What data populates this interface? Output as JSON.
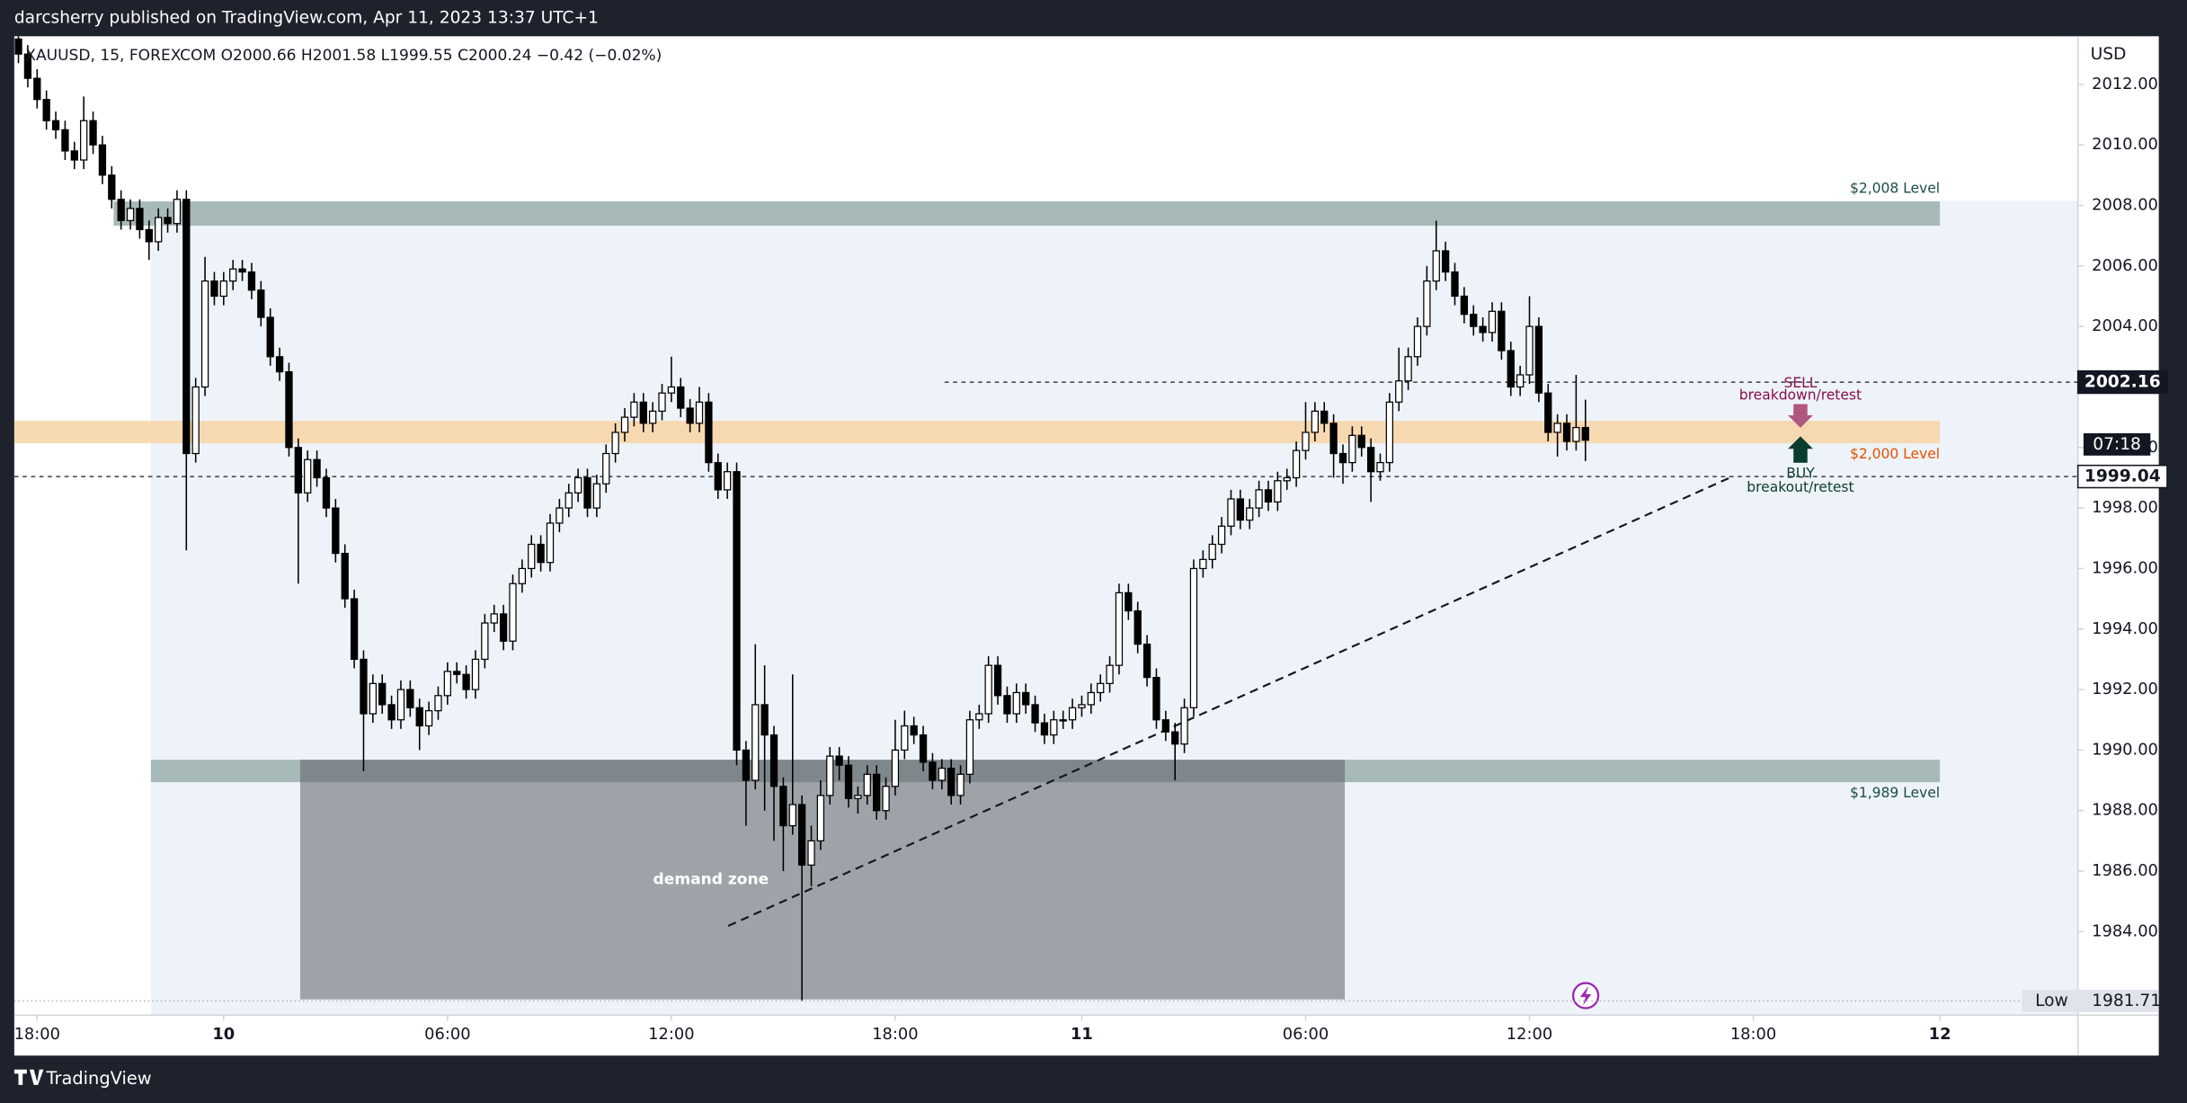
{
  "header": "darcsherry published on TradingView.com, Apr 11, 2023 13:37 UTC+1",
  "footer": "TradingView",
  "chart_data": {
    "type": "candlestick",
    "symbol_line": "XAUUSD, 15, FOREXCOM  O2000.66  H2001.58  L1999.55  C2000.24  −0.42 (−0.02%)",
    "y_axis_label": "USD",
    "open": [
      2013.5,
      2013.0,
      2012.2,
      2011.5,
      2010.8,
      2010.5,
      2009.8,
      2009.5,
      2010.8,
      2010.0,
      2009.0,
      2008.2,
      2007.5,
      2007.9,
      2007.2,
      2006.8,
      2007.6,
      2007.4,
      2008.2,
      1999.8,
      2002.0,
      2005.5,
      2005.0,
      2005.5,
      2005.9,
      2005.8,
      2005.2,
      2004.3,
      2003.0,
      2002.5,
      2000.0,
      1998.5,
      1999.6,
      1999.0,
      1998.0,
      1996.5,
      1995.0,
      1993.0,
      1991.2,
      1992.2,
      1991.5,
      1991.0,
      1992.0,
      1991.4,
      1990.8,
      1991.3,
      1991.8,
      1992.6,
      1992.5,
      1992.0,
      1993.0,
      1994.2,
      1994.5,
      1993.6,
      1995.5,
      1996.0,
      1996.8,
      1996.2,
      1997.5,
      1998.0,
      1998.5,
      1999.0,
      1998.0,
      1998.8,
      1999.8,
      2000.5,
      2001.0,
      2001.5,
      2000.8,
      2001.2,
      2001.8,
      2002.0,
      2001.3,
      2000.8,
      2001.5,
      1999.5,
      1998.6,
      1999.2,
      1990.0,
      1989.0,
      1991.5,
      1990.5,
      1988.8,
      1987.5,
      1988.2,
      1986.2,
      1987.0,
      1988.5,
      1989.8,
      1989.5,
      1988.4,
      1988.5,
      1989.2,
      1988.0,
      1988.8,
      1990.0,
      1990.8,
      1990.5,
      1989.6,
      1989.0,
      1989.4,
      1988.5,
      1989.2,
      1991.0,
      1991.2,
      1992.8,
      1991.8,
      1991.2,
      1991.9,
      1991.5,
      1990.9,
      1990.5,
      1991.0,
      1991.0,
      1991.4,
      1991.5,
      1991.9,
      1992.2,
      1992.8,
      1995.2,
      1994.6,
      1993.5,
      1992.4,
      1991.0,
      1990.6,
      1990.2,
      1991.4,
      1996.0,
      1996.3,
      1996.8,
      1997.4,
      1998.3,
      1997.6,
      1998.0,
      1998.6,
      1998.2,
      1998.9,
      1999.0,
      1999.9,
      2000.5,
      2001.2,
      2000.8,
      1999.8,
      1999.5,
      2000.4,
      2000.0,
      1999.2,
      1999.5,
      2001.5,
      2002.2,
      2003.0,
      2004.0,
      2005.5,
      2006.5,
      2005.8,
      2005.0,
      2004.4,
      2004.0,
      2003.8,
      2004.5,
      2003.2,
      2002.0,
      2002.4,
      2004.0,
      2001.8,
      2000.5,
      2000.8,
      2000.2,
      2000.66
    ],
    "high": [
      2013.8,
      2013.3,
      2012.5,
      2011.8,
      2011.1,
      2010.8,
      2010.1,
      2011.6,
      2011.1,
      2010.3,
      2009.3,
      2008.5,
      2008.2,
      2008.2,
      2007.5,
      2007.9,
      2007.9,
      2008.5,
      2008.5,
      2002.3,
      2006.3,
      2005.8,
      2005.8,
      2006.2,
      2006.2,
      2006.1,
      2005.5,
      2004.6,
      2003.3,
      2002.8,
      2000.3,
      1999.9,
      1999.9,
      1999.3,
      1998.3,
      1996.8,
      1995.3,
      1993.3,
      1992.5,
      1992.5,
      1991.8,
      1992.3,
      1992.3,
      1991.7,
      1991.6,
      1992.1,
      1992.9,
      1992.9,
      1992.8,
      1993.3,
      1994.5,
      1994.8,
      1994.8,
      1995.8,
      1996.3,
      1997.1,
      1997.1,
      1997.8,
      1998.3,
      1998.8,
      1999.3,
      1999.3,
      1999.1,
      2000.1,
      2000.8,
      2001.3,
      2001.8,
      2001.8,
      2001.5,
      2002.1,
      2003.0,
      2002.3,
      2001.6,
      2002.0,
      2001.8,
      1999.8,
      1999.5,
      1999.5,
      1990.3,
      1993.5,
      1992.8,
      1990.8,
      1989.1,
      1992.5,
      1988.5,
      1987.5,
      1989.0,
      1990.1,
      1990.1,
      1989.8,
      1988.8,
      1989.5,
      1989.5,
      1989.1,
      1991.0,
      1991.3,
      1991.1,
      1990.8,
      1989.9,
      1989.7,
      1989.7,
      1989.5,
      1991.3,
      1991.5,
      1993.1,
      1993.1,
      1992.1,
      1992.2,
      1992.2,
      1991.8,
      1991.2,
      1991.3,
      1991.3,
      1991.7,
      1991.8,
      1992.2,
      1992.5,
      1993.1,
      1995.5,
      1995.5,
      1994.9,
      1993.8,
      1992.7,
      1991.3,
      1990.9,
      1991.7,
      1996.3,
      1996.6,
      1997.1,
      1997.7,
      1998.6,
      1998.6,
      1998.3,
      1998.9,
      1998.9,
      1999.2,
      1999.3,
      2000.2,
      2001.5,
      2001.5,
      2001.5,
      2001.1,
      2000.1,
      2000.7,
      2000.7,
      2000.3,
      1999.8,
      2001.8,
      2003.3,
      2003.3,
      2004.3,
      2006.0,
      2007.5,
      2006.8,
      2006.1,
      2005.3,
      2004.7,
      2004.3,
      2004.8,
      2004.8,
      2003.5,
      2002.7,
      2005.0,
      2004.3,
      2002.1,
      2001.1,
      2001.1,
      2002.4,
      2001.58
    ],
    "low": [
      2012.7,
      2011.9,
      2011.2,
      2010.5,
      2010.2,
      2009.5,
      2009.2,
      2009.2,
      2009.7,
      2008.7,
      2007.9,
      2007.2,
      2007.2,
      2006.9,
      2006.2,
      2006.5,
      2007.1,
      2007.1,
      1996.6,
      1999.5,
      2001.7,
      2004.7,
      2004.7,
      2005.2,
      2005.5,
      2004.9,
      2004.0,
      2002.7,
      2002.2,
      1999.7,
      1995.5,
      1998.2,
      1998.7,
      1997.7,
      1996.2,
      1994.7,
      1992.7,
      1989.3,
      1990.9,
      1991.2,
      1990.7,
      1990.7,
      1991.1,
      1990.0,
      1990.5,
      1991.0,
      1991.5,
      1992.2,
      1991.7,
      1991.7,
      1992.7,
      1993.9,
      1993.3,
      1993.3,
      1995.2,
      1995.7,
      1995.9,
      1995.9,
      1997.2,
      1997.7,
      1998.2,
      1997.7,
      1997.7,
      1998.5,
      1999.5,
      2000.2,
      2000.7,
      2000.5,
      2000.5,
      2000.9,
      2001.5,
      2001.0,
      2000.5,
      2000.5,
      1999.2,
      1998.3,
      1998.3,
      1989.5,
      1987.5,
      1988.7,
      1988.0,
      1987.0,
      1986.0,
      1987.2,
      1981.71,
      1985.5,
      1986.7,
      1988.2,
      1989.0,
      1988.1,
      1987.9,
      1988.2,
      1987.7,
      1987.7,
      1988.5,
      1989.7,
      1990.2,
      1989.3,
      1988.7,
      1988.7,
      1988.2,
      1988.2,
      1988.9,
      1990.7,
      1990.9,
      1991.5,
      1990.9,
      1990.9,
      1991.2,
      1990.6,
      1990.2,
      1990.2,
      1990.7,
      1990.7,
      1991.1,
      1991.2,
      1991.6,
      1991.9,
      1992.5,
      1994.3,
      1993.2,
      1992.1,
      1990.7,
      1990.3,
      1989.0,
      1989.9,
      1991.1,
      1995.7,
      1996.0,
      1996.5,
      1997.1,
      1997.3,
      1997.3,
      1997.7,
      1997.9,
      1997.9,
      1998.6,
      1998.7,
      1999.6,
      2000.2,
      2000.5,
      1999.0,
      1998.8,
      1999.2,
      1999.7,
      1998.2,
      1998.9,
      1999.2,
      2001.2,
      2001.9,
      2002.7,
      2003.7,
      2005.2,
      2005.5,
      2004.7,
      2004.1,
      2003.7,
      2003.5,
      2003.5,
      2002.9,
      2001.7,
      2001.7,
      2002.1,
      2001.5,
      2000.2,
      1999.7,
      1999.9,
      1999.9,
      1999.55
    ],
    "close": [
      2013.0,
      2012.2,
      2011.5,
      2010.8,
      2010.5,
      2009.8,
      2009.5,
      2010.8,
      2010.0,
      2009.0,
      2008.2,
      2007.5,
      2007.9,
      2007.2,
      2006.8,
      2007.6,
      2007.4,
      2008.2,
      1999.8,
      2002.0,
      2005.5,
      2005.0,
      2005.5,
      2005.9,
      2005.8,
      2005.2,
      2004.3,
      2003.0,
      2002.5,
      2000.0,
      1998.5,
      1999.6,
      1999.0,
      1998.0,
      1996.5,
      1995.0,
      1993.0,
      1991.2,
      1992.2,
      1991.5,
      1991.0,
      1992.0,
      1991.4,
      1990.8,
      1991.3,
      1991.8,
      1992.6,
      1992.5,
      1992.0,
      1993.0,
      1994.2,
      1994.5,
      1993.6,
      1995.5,
      1996.0,
      1996.8,
      1996.2,
      1997.5,
      1998.0,
      1998.5,
      1999.0,
      1998.0,
      1998.8,
      1999.8,
      2000.5,
      2001.0,
      2001.5,
      2000.8,
      2001.2,
      2001.8,
      2002.0,
      2001.3,
      2000.8,
      2001.5,
      1999.5,
      1998.6,
      1999.2,
      1990.0,
      1989.0,
      1991.5,
      1990.5,
      1988.8,
      1987.5,
      1988.2,
      1986.2,
      1987.0,
      1988.5,
      1989.8,
      1989.5,
      1988.4,
      1988.5,
      1989.2,
      1988.0,
      1988.8,
      1990.0,
      1990.8,
      1990.5,
      1989.6,
      1989.0,
      1989.4,
      1988.5,
      1989.2,
      1991.0,
      1991.2,
      1992.8,
      1991.8,
      1991.2,
      1991.9,
      1991.5,
      1990.9,
      1990.5,
      1991.0,
      1991.0,
      1991.4,
      1991.5,
      1991.9,
      1992.2,
      1992.8,
      1995.2,
      1994.6,
      1993.5,
      1992.4,
      1991.0,
      1990.6,
      1990.2,
      1991.4,
      1996.0,
      1996.3,
      1996.8,
      1997.4,
      1998.3,
      1997.6,
      1998.0,
      1998.6,
      1998.2,
      1998.9,
      1999.0,
      1999.9,
      2000.5,
      2001.2,
      2000.8,
      1999.8,
      1999.5,
      2000.4,
      2000.0,
      1999.2,
      1999.5,
      2001.5,
      2002.2,
      2003.0,
      2004.0,
      2005.5,
      2006.5,
      2005.8,
      2005.0,
      2004.4,
      2004.0,
      2003.8,
      2004.5,
      2003.2,
      2002.0,
      2002.4,
      2004.0,
      2001.8,
      2000.5,
      2000.8,
      2000.2,
      2000.66,
      2000.24
    ],
    "up_color": "#ffffff",
    "down_color": "#000000",
    "outline_color": "#000000",
    "xlim": [
      -0.45,
      220.8
    ],
    "xticks": [
      {
        "value": 2,
        "label": "18:00"
      },
      {
        "value": 22,
        "label": "10"
      },
      {
        "value": 46,
        "label": "06:00"
      },
      {
        "value": 70,
        "label": "12:00"
      },
      {
        "value": 94,
        "label": "18:00"
      },
      {
        "value": 114,
        "label": "11"
      },
      {
        "value": 138,
        "label": "06:00"
      },
      {
        "value": 162,
        "label": "12:00"
      },
      {
        "value": 186,
        "label": "18:00"
      },
      {
        "value": 206,
        "label": "12"
      }
    ],
    "ylim": [
      1981.24,
      2013.59
    ],
    "yticks": [
      {
        "value": 1984,
        "label": "1984.00"
      },
      {
        "value": 1986,
        "label": "1986.00"
      },
      {
        "value": 1988,
        "label": "1988.00"
      },
      {
        "value": 1990,
        "label": "1990.00"
      },
      {
        "value": 1992,
        "label": "1992.00"
      },
      {
        "value": 1994,
        "label": "1994.00"
      },
      {
        "value": 1996,
        "label": "1996.00"
      },
      {
        "value": 1998,
        "label": "1998.00"
      },
      {
        "value": 2000,
        "label": "2000.00"
      },
      {
        "value": 2002,
        "label": "2002.00"
      },
      {
        "value": 2004,
        "label": "2004.00"
      },
      {
        "value": 2006,
        "label": "2006.00"
      },
      {
        "value": 2008,
        "label": "2008.00"
      },
      {
        "value": 2010,
        "label": "2010.00"
      },
      {
        "value": 2012,
        "label": "2012.00"
      }
    ],
    "zones": [
      {
        "label": "$2,008 Level",
        "low": 2007.33,
        "high": 2008.13,
        "from": 10.2,
        "to": 206,
        "color": "#9fb3b0",
        "label_color": "#1b4d45"
      },
      {
        "label": "$2,000 Level",
        "low": 2000.14,
        "high": 2000.88,
        "from": -0.45,
        "to": 206,
        "color": "#f7d6a8",
        "label_color": "#e65100"
      },
      {
        "label": "$1,989 Level",
        "low": 1988.94,
        "high": 1989.68,
        "from": 14.2,
        "to": 206,
        "color": "#9fb3b0",
        "label_color": "#1b4d45"
      },
      {
        "label": "demand zone",
        "low": 1981.76,
        "high": 1989.68,
        "from": 30.2,
        "to": 142.2,
        "color": "#5d6168",
        "label_color": "#ffffff"
      }
    ],
    "trendline": {
      "from": 76.1,
      "from_value": 1984.19,
      "to": 183.4,
      "to_value": 1998.99
    },
    "price_lines": [
      {
        "value": 2002.16,
        "label": "2002.16",
        "from": 99.3
      },
      {
        "value": 1999.04,
        "label": "1999.04",
        "from": -0.45
      }
    ],
    "countdown": "07:18",
    "low_label": "Low",
    "low_value": 1981.71,
    "low_value_label": "1981.71",
    "sell": {
      "title": "SELL",
      "text": "breakdown/retest",
      "color": "#880e4f",
      "arrow_color": "#b0577f"
    },
    "buy": {
      "title": "BUY",
      "text": "breakout/retest",
      "color": "#0b3d2e",
      "arrow_color": "#0b3d2e"
    }
  }
}
